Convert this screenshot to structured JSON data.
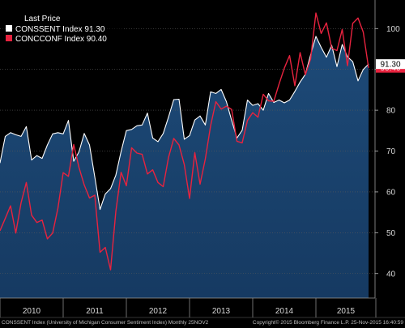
{
  "chart_data": {
    "type": "area",
    "legend": {
      "title": "Last Price",
      "position": "top-left"
    },
    "ylim": [
      34,
      107
    ],
    "y_ticks": [
      40,
      50,
      60,
      70,
      80,
      90,
      100
    ],
    "x_ticks": [
      "2010",
      "2011",
      "2012",
      "2013",
      "2014",
      "2015"
    ],
    "series": [
      {
        "name": "CONSSENT Index",
        "last_value": "91.30",
        "color": "#ffffff",
        "fill": "#163a62",
        "values": [
          67.1,
          73.6,
          74.5,
          74.0,
          73.6,
          76.0,
          67.8,
          68.9,
          68.2,
          71.5,
          74.2,
          74.5,
          74.2,
          77.5,
          67.5,
          69.8,
          74.3,
          71.5,
          63.7,
          55.7,
          59.5,
          60.8,
          64.1,
          69.9,
          75.0,
          75.3,
          76.2,
          76.4,
          79.3,
          73.2,
          72.3,
          74.3,
          78.3,
          82.6,
          82.7,
          72.9,
          73.8,
          77.6,
          78.6,
          76.4,
          84.5,
          84.1,
          85.1,
          82.1,
          77.5,
          73.2,
          75.1,
          82.5,
          81.2,
          81.6,
          80.0,
          84.1,
          81.9,
          82.5,
          81.8,
          82.5,
          84.6,
          86.9,
          88.8,
          93.6,
          98.1,
          95.4,
          93.0,
          95.9,
          90.7,
          96.1,
          93.1,
          91.9,
          87.2,
          90.0,
          91.3
        ]
      },
      {
        "name": "CONCCONF Index",
        "last_value": "90.40",
        "color": "#e8233f",
        "values": [
          50.5,
          53.5,
          56.6,
          49.9,
          57.3,
          62.3,
          54.3,
          52.5,
          53.1,
          48.5,
          49.9,
          56.0,
          64.7,
          63.8,
          71.6,
          66.0,
          61.7,
          58.5,
          59.2,
          45.2,
          46.4,
          40.9,
          55.2,
          64.8,
          61.5,
          70.8,
          69.5,
          69.2,
          64.4,
          65.4,
          62.3,
          61.3,
          68.4,
          73.1,
          71.5,
          66.7,
          58.4,
          69.6,
          61.9,
          68.1,
          76.2,
          82.1,
          80.3,
          81.0,
          80.2,
          72.4,
          72.0,
          77.5,
          79.4,
          78.3,
          83.9,
          82.3,
          82.2,
          86.4,
          90.3,
          93.4,
          86.0,
          94.1,
          88.7,
          92.6,
          103.8,
          98.8,
          101.4,
          95.2,
          94.6,
          99.8,
          90.9,
          101.3,
          102.6,
          99.1,
          90.4
        ]
      }
    ]
  },
  "footer": {
    "left": "CONSSENT Index (University of Michigan Consumer Sentiment Index)  Monthly 25NOV2",
    "right": "Copyright© 2015 Bloomberg Finance L.P.    25-Nov-2015 16:40:59"
  }
}
